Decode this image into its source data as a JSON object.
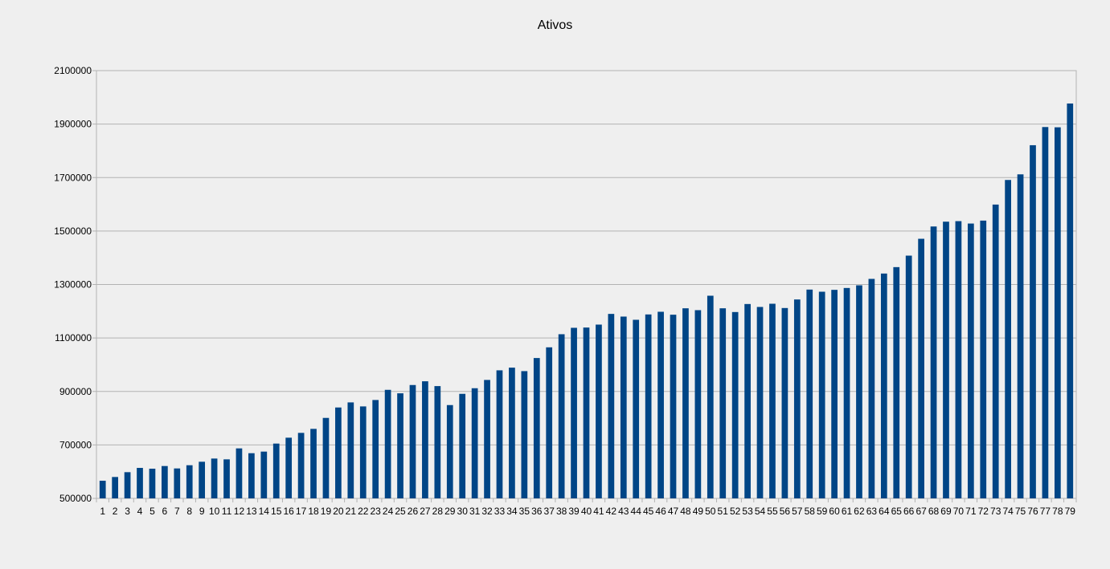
{
  "chart_data": {
    "type": "bar",
    "title": "Ativos",
    "xlabel": "",
    "ylabel": "",
    "ylim": [
      500000,
      2100000
    ],
    "yticks": [
      500000,
      700000,
      900000,
      1100000,
      1300000,
      1500000,
      1700000,
      1900000,
      2100000
    ],
    "ytick_labels": [
      "500000",
      "700000",
      "900000",
      "1100000",
      "1300000",
      "1500000",
      "1700000",
      "1900000",
      "2100000"
    ],
    "grid": true,
    "legend": "none",
    "bar_color": "#004586",
    "categories": [
      "1",
      "2",
      "3",
      "4",
      "5",
      "6",
      "7",
      "8",
      "9",
      "10",
      "11",
      "12",
      "13",
      "14",
      "15",
      "16",
      "17",
      "18",
      "19",
      "20",
      "21",
      "22",
      "23",
      "24",
      "25",
      "26",
      "27",
      "28",
      "29",
      "30",
      "31",
      "32",
      "33",
      "34",
      "35",
      "36",
      "37",
      "38",
      "39",
      "40",
      "41",
      "42",
      "43",
      "44",
      "45",
      "46",
      "47",
      "48",
      "49",
      "50",
      "51",
      "52",
      "53",
      "54",
      "55",
      "56",
      "57",
      "58",
      "59",
      "60",
      "61",
      "62",
      "63",
      "64",
      "65",
      "66",
      "67",
      "68",
      "69",
      "70",
      "71",
      "72",
      "73",
      "74",
      "75",
      "76",
      "77",
      "78",
      "79"
    ],
    "values": [
      566000,
      580000,
      598000,
      614000,
      611000,
      621000,
      612000,
      624000,
      637000,
      649000,
      646000,
      687000,
      669000,
      675000,
      705000,
      727000,
      745000,
      760000,
      801000,
      840000,
      859000,
      844000,
      868000,
      906000,
      893000,
      924000,
      938000,
      920000,
      849000,
      891000,
      912000,
      943000,
      979000,
      989000,
      976000,
      1025000,
      1065000,
      1114000,
      1138000,
      1139000,
      1150000,
      1190000,
      1180000,
      1168000,
      1188000,
      1198000,
      1187000,
      1211000,
      1204000,
      1258000,
      1211000,
      1197000,
      1227000,
      1216000,
      1228000,
      1212000,
      1244000,
      1281000,
      1273000,
      1280000,
      1287000,
      1297000,
      1321000,
      1341000,
      1365000,
      1408000,
      1471000,
      1517000,
      1535000,
      1537000,
      1528000,
      1539000,
      1599000,
      1691000,
      1712000,
      1821000,
      1889000,
      1888000,
      1977000
    ]
  }
}
